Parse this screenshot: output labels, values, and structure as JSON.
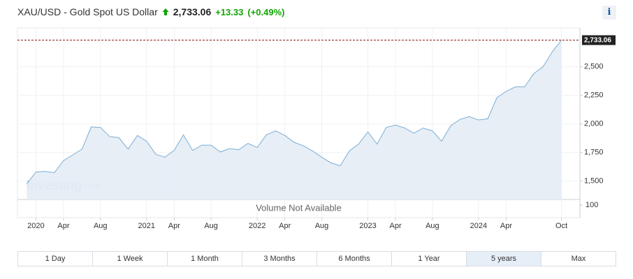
{
  "chart_data": {
    "type": "area",
    "title": "XAU/USD - Gold Spot US Dollar",
    "last_price": {
      "value": 2733.06,
      "label": "2,733.06"
    },
    "change": "+13.33",
    "change_percent": "(+0.49%)",
    "watermark": "Investing",
    "watermark_suffix": ".com",
    "volume_note": "Volume Not Available",
    "volume_ticks": [
      100
    ],
    "x": [
      "2019-12",
      "2020-01",
      "2020-02",
      "2020-03",
      "2020-04",
      "2020-05",
      "2020-06",
      "2020-07",
      "2020-08",
      "2020-09",
      "2020-10",
      "2020-11",
      "2020-12",
      "2021-01",
      "2021-02",
      "2021-03",
      "2021-04",
      "2021-05",
      "2021-06",
      "2021-07",
      "2021-08",
      "2021-09",
      "2021-10",
      "2021-11",
      "2021-12",
      "2022-01",
      "2022-02",
      "2022-03",
      "2022-04",
      "2022-05",
      "2022-06",
      "2022-07",
      "2022-08",
      "2022-09",
      "2022-10",
      "2022-11",
      "2022-12",
      "2023-01",
      "2023-02",
      "2023-03",
      "2023-04",
      "2023-05",
      "2023-06",
      "2023-07",
      "2023-08",
      "2023-09",
      "2023-10",
      "2023-11",
      "2023-12",
      "2024-01",
      "2024-02",
      "2024-03",
      "2024-04",
      "2024-05",
      "2024-06",
      "2024-07",
      "2024-08",
      "2024-09",
      "2024-10"
    ],
    "series": [
      {
        "name": "XAU/USD",
        "color": "#7aaed6",
        "values": [
          1475,
          1580,
          1585,
          1575,
          1680,
          1730,
          1780,
          1975,
          1970,
          1890,
          1880,
          1780,
          1900,
          1850,
          1735,
          1710,
          1770,
          1905,
          1770,
          1815,
          1815,
          1755,
          1785,
          1775,
          1830,
          1795,
          1905,
          1940,
          1900,
          1840,
          1810,
          1765,
          1710,
          1660,
          1635,
          1765,
          1825,
          1930,
          1825,
          1970,
          1990,
          1965,
          1920,
          1965,
          1940,
          1850,
          1985,
          2040,
          2065,
          2035,
          2045,
          2230,
          2285,
          2325,
          2325,
          2440,
          2500,
          2630,
          2733.06
        ]
      }
    ],
    "xlim": [
      "2019-11",
      "2024-12"
    ],
    "xticks": [
      {
        "value": "2020-01",
        "label": "2020"
      },
      {
        "value": "2020-04",
        "label": "Apr"
      },
      {
        "value": "2020-08",
        "label": "Aug"
      },
      {
        "value": "2021-01",
        "label": "2021"
      },
      {
        "value": "2021-04",
        "label": "Apr"
      },
      {
        "value": "2021-08",
        "label": "Aug"
      },
      {
        "value": "2022-01",
        "label": "2022"
      },
      {
        "value": "2022-04",
        "label": "Apr"
      },
      {
        "value": "2022-08",
        "label": "Aug"
      },
      {
        "value": "2023-01",
        "label": "2023"
      },
      {
        "value": "2023-04",
        "label": "Apr"
      },
      {
        "value": "2023-08",
        "label": "Aug"
      },
      {
        "value": "2024-01",
        "label": "2024"
      },
      {
        "value": "2024-04",
        "label": "Apr"
      },
      {
        "value": "2024-10",
        "label": "Oct"
      }
    ],
    "ylim": [
      1340,
      2840
    ],
    "yticks": [
      {
        "value": 1500,
        "label": "1,500"
      },
      {
        "value": 1750,
        "label": "1,750"
      },
      {
        "value": 2000,
        "label": "2,000"
      },
      {
        "value": 2250,
        "label": "2,250"
      },
      {
        "value": 2500,
        "label": "2,500"
      }
    ],
    "grid": true,
    "ranges": [
      "1 Day",
      "1 Week",
      "1 Month",
      "3 Months",
      "6 Months",
      "1 Year",
      "5 years",
      "Max"
    ],
    "active_range": "5 years"
  }
}
